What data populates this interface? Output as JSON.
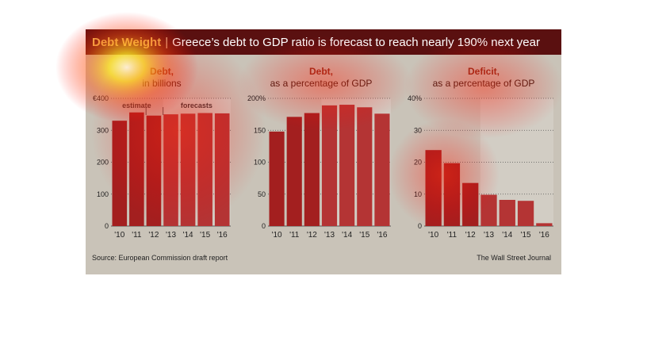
{
  "header": {
    "kicker": "Debt Weight",
    "separator": "|",
    "headline": "Greece’s debt to GDP ratio is forecast to reach nearly 190% next year"
  },
  "colors": {
    "bar_actual": "#a31f1f",
    "bar_forecast": "#b43434",
    "title_bar": "#5a1010",
    "accent_gold": "#f0d060",
    "panel_title": "#8a2a18"
  },
  "annotations": {
    "estimate": "estimate",
    "forecasts": "forecasts"
  },
  "chart_data": [
    {
      "type": "bar",
      "title": "Debt,",
      "subtitle": "in billions",
      "categories": [
        "'10",
        "'11",
        "'12",
        "'13",
        "'14",
        "'15",
        "'16"
      ],
      "values": [
        330,
        356,
        346,
        350,
        352,
        354,
        353
      ],
      "yticks": [
        "€400",
        "300",
        "200",
        "100",
        "0"
      ],
      "ylim": [
        0,
        400
      ],
      "grid": true
    },
    {
      "type": "bar",
      "title": "Debt,",
      "subtitle": "as a percentage of GDP",
      "categories": [
        "'10",
        "'11",
        "'12",
        "'13",
        "'14",
        "'15",
        "'16"
      ],
      "values": [
        148,
        171,
        177,
        189,
        190,
        186,
        176
      ],
      "yticks": [
        "200%",
        "150",
        "100",
        "50",
        "0"
      ],
      "ylim": [
        0,
        200
      ],
      "grid": true
    },
    {
      "type": "bar",
      "title": "Deficit,",
      "subtitle": "as a percentage of GDP",
      "categories": [
        "'10",
        "'11",
        "'12",
        "'13",
        "'14",
        "'15",
        "'16"
      ],
      "values": [
        23.8,
        19.7,
        13.5,
        9.8,
        8.2,
        7.9,
        0.9
      ],
      "yticks": [
        "40%",
        "30",
        "20",
        "10",
        "0"
      ],
      "ylim": [
        0,
        40
      ],
      "grid": true
    }
  ],
  "footer": {
    "source": "Source: European Commission draft report",
    "credit": "The Wall Street Journal"
  }
}
